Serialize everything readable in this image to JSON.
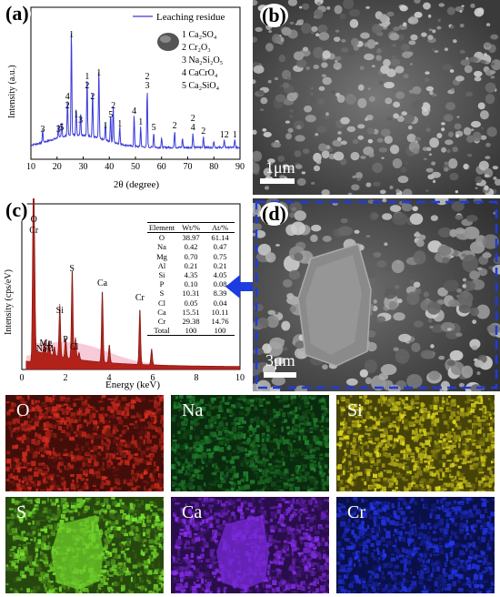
{
  "panels": {
    "a": "(a)",
    "b": "(b)",
    "c": "(c)",
    "d": "(d)"
  },
  "xrd": {
    "legend": "Leaching residue",
    "phases": [
      "1 Ca₂SO₄",
      "2 Cr₂O₃",
      "3 Na₂Si₂O₅",
      "4 CaCrO₄",
      "5 Ca₂SiO₄"
    ],
    "ylabel": "Intensity (a.u.)",
    "xlabel": "2θ (degree)",
    "xticks": [
      "10",
      "20",
      "30",
      "40",
      "50",
      "60",
      "70",
      "80",
      "90"
    ],
    "peak_labels": [
      {
        "x": 25.5,
        "text": "1"
      },
      {
        "x": 14.5,
        "text": "3"
      },
      {
        "x": 20.5,
        "text": "3"
      },
      {
        "x": 21.8,
        "text": "5"
      },
      {
        "x": 24.0,
        "text": "2"
      },
      {
        "x": 24.0,
        "text": "4"
      },
      {
        "x": 27.3,
        "text": "1"
      },
      {
        "x": 29.0,
        "text": "3"
      },
      {
        "x": 31.5,
        "text": "2"
      },
      {
        "x": 31.5,
        "text": "1"
      },
      {
        "x": 33.6,
        "text": "2"
      },
      {
        "x": 36.0,
        "text": "1"
      },
      {
        "x": 38.5,
        "text": "1"
      },
      {
        "x": 40.5,
        "text": "5"
      },
      {
        "x": 41.5,
        "text": "2"
      },
      {
        "x": 44.0,
        "text": "1"
      },
      {
        "x": 49.5,
        "text": "4"
      },
      {
        "x": 52.0,
        "text": "1"
      },
      {
        "x": 54.5,
        "text": "3"
      },
      {
        "x": 54.5,
        "text": "2"
      },
      {
        "x": 57.0,
        "text": "5"
      },
      {
        "x": 65.0,
        "text": "2"
      },
      {
        "x": 72.0,
        "text": "4"
      },
      {
        "x": 72.0,
        "text": "2"
      },
      {
        "x": 76.0,
        "text": "2"
      },
      {
        "x": 84.0,
        "text": "12"
      },
      {
        "x": 88.0,
        "text": "1"
      }
    ]
  },
  "sem_b": {
    "scale": "1μm"
  },
  "sem_d": {
    "scale": "3μm"
  },
  "eds": {
    "ylabel": "Intensity (cps/eV)",
    "xlabel": "Energy (keV)",
    "xticks": [
      "0",
      "2",
      "4",
      "6",
      "8",
      "10"
    ],
    "peak_labels": [
      "O",
      "Cr",
      "S",
      "Si",
      "Ca",
      "Cr",
      "Mg",
      "Na",
      "Al",
      "P",
      "Cl"
    ],
    "table": {
      "headers": [
        "Element",
        "Wt/%",
        "At/%"
      ],
      "rows": [
        [
          "O",
          "38.97",
          "61.14"
        ],
        [
          "Na",
          "0.42",
          "0.47"
        ],
        [
          "Mg",
          "0.70",
          "0.75"
        ],
        [
          "Al",
          "0.21",
          "0.21"
        ],
        [
          "Si",
          "4.35",
          "4.05"
        ],
        [
          "P",
          "0.10",
          "0.08"
        ],
        [
          "S",
          "10.31",
          "8.39"
        ],
        [
          "Cl",
          "0.05",
          "0.04"
        ],
        [
          "Ca",
          "15.51",
          "10.11"
        ],
        [
          "Cr",
          "29.38",
          "14.76"
        ],
        [
          "Total",
          "100",
          "100"
        ]
      ]
    }
  },
  "maps": [
    {
      "label": "O",
      "color": "#c0281c"
    },
    {
      "label": "Na",
      "color": "#1f7a2a"
    },
    {
      "label": "Si",
      "color": "#c9c21a"
    },
    {
      "label": "S",
      "color": "#6fcf2a"
    },
    {
      "label": "Ca",
      "color": "#7a2ad9"
    },
    {
      "label": "Cr",
      "color": "#1f2fd0"
    }
  ]
}
